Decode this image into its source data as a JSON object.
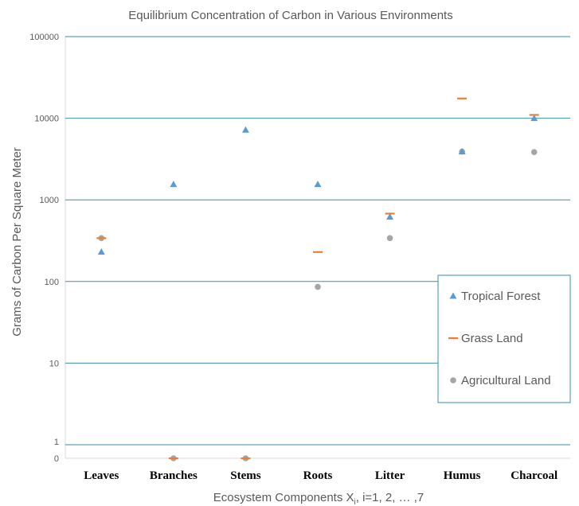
{
  "chart_data": {
    "type": "scatter",
    "title": "Equilibrium Concentration of Carbon in Various Environments",
    "xlabel_main": "Ecosystem Components X",
    "xlabel_sub": "i",
    "xlabel_rest": ", i=1, 2, … ,7",
    "ylabel": "Grams of Carbon Per Square Meter",
    "categories": [
      "Leaves",
      "Branches",
      "Stems",
      "Roots",
      "Litter",
      "Humus",
      "Charcoal"
    ],
    "y_scale": "log (with zero at bottom)",
    "ylim": [
      0,
      100000
    ],
    "y_ticks": [
      {
        "label": "100000",
        "value": 100000
      },
      {
        "label": "10000",
        "value": 10000
      },
      {
        "label": "1000",
        "value": 1000
      },
      {
        "label": "100",
        "value": 100
      },
      {
        "label": "10",
        "value": 10
      },
      {
        "label": "1",
        "value": 1
      },
      {
        "label": "0",
        "value": 0
      }
    ],
    "grid": true,
    "legend_position": "right",
    "series": [
      {
        "name": "Tropical Forest",
        "marker": "triangle",
        "color": "#5b9bd5",
        "values": [
          230,
          1550,
          7200,
          1550,
          620,
          3900,
          10000
        ]
      },
      {
        "name": "Grass Land",
        "marker": "dash",
        "color": "#ed7d31",
        "values": [
          340,
          0,
          0,
          230,
          680,
          17500,
          11000
        ]
      },
      {
        "name": "Agricultural Land",
        "marker": "circle",
        "color": "#a5a5a5",
        "values": [
          340,
          0,
          0,
          86,
          340,
          3900,
          3850
        ]
      }
    ]
  }
}
